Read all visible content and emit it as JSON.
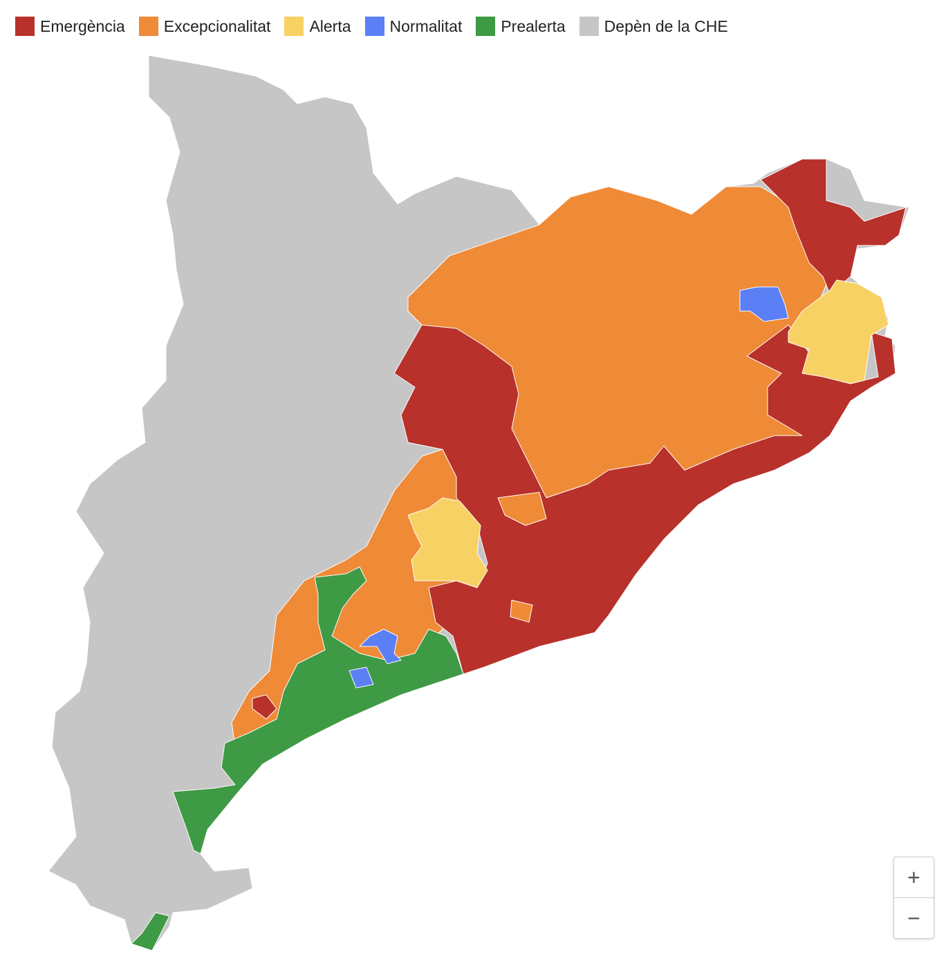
{
  "legend": {
    "items": [
      {
        "label": "Emergència",
        "color": "#b8312b"
      },
      {
        "label": "Excepcionalitat",
        "color": "#ef8a37"
      },
      {
        "label": "Alerta",
        "color": "#f7d163"
      },
      {
        "label": "Normalitat",
        "color": "#5b7ff5"
      },
      {
        "label": "Prealerta",
        "color": "#3f9a45"
      },
      {
        "label": "Depèn de la CHE",
        "color": "#c6c6c6"
      }
    ]
  },
  "zoom": {
    "in": "+",
    "out": "−"
  }
}
